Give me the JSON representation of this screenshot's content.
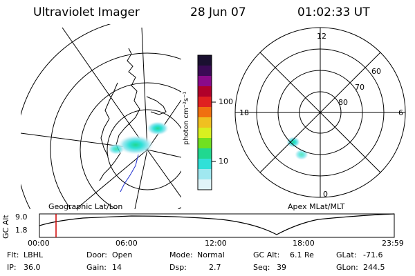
{
  "header": {
    "title": "Ultraviolet Imager",
    "date": "28 Jun 07",
    "time": "01:02:33 UT"
  },
  "colorbar": {
    "unit_label": "photon cm⁻²s⁻¹",
    "ticks": [
      "100",
      "10"
    ],
    "colors": [
      "#1a1030",
      "#3a0a55",
      "#8a0a8a",
      "#b0002a",
      "#e02020",
      "#f07010",
      "#f0c020",
      "#d8f020",
      "#70e020",
      "#20d890",
      "#30e0d8",
      "#a0e8f0",
      "#e0f4f8"
    ]
  },
  "left_map": {
    "label": "Geographic Lat/Lon"
  },
  "right_map": {
    "label": "Apex MLat/MLT",
    "hour_labels": {
      "top": "12",
      "left": "18",
      "right": "6",
      "bottom": "0"
    },
    "lat_labels": [
      "60",
      "70",
      "80"
    ]
  },
  "altitude_plot": {
    "ylabel": "GC Alt",
    "yticks": [
      "9.0",
      "1.8"
    ],
    "xticks": [
      "00:00",
      "06:00",
      "12:00",
      "18:00",
      "23:59"
    ],
    "marker_color": "#d00000"
  },
  "status": {
    "row1": [
      {
        "key": "Flt:",
        "value": "LBHL"
      },
      {
        "key": "Door:",
        "value": "Open"
      },
      {
        "key": "Mode:",
        "value": "Normal"
      },
      {
        "key": "GC Alt:",
        "value": "6.1 Re"
      },
      {
        "key": "GLat:",
        "value": "-71.6"
      }
    ],
    "row2": [
      {
        "key": "IP:",
        "value": "36.0"
      },
      {
        "key": "Gain:",
        "value": "14"
      },
      {
        "key": "Dsp:",
        "value": "2.7"
      },
      {
        "key": "Seq:",
        "value": "39"
      },
      {
        "key": "GLon:",
        "value": "244.5"
      }
    ]
  }
}
